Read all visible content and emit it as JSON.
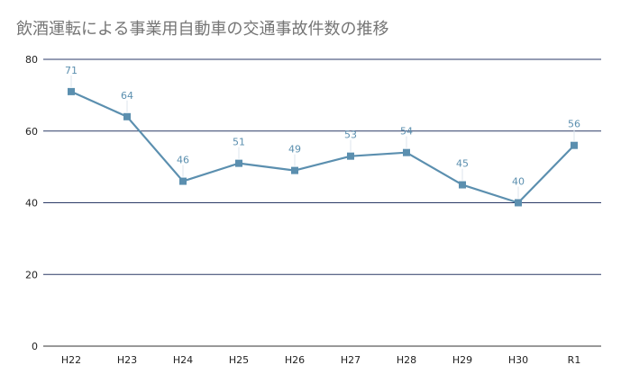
{
  "chart_data": {
    "type": "line",
    "title": "飲酒運転による事業用自動車の交通事故件数の推移",
    "categories": [
      "H22",
      "H23",
      "H24",
      "H25",
      "H26",
      "H27",
      "H28",
      "H29",
      "H30",
      "R1"
    ],
    "series": [
      {
        "values": [
          71,
          64,
          46,
          51,
          49,
          53,
          54,
          45,
          40,
          56
        ]
      }
    ],
    "ylim": [
      0,
      80
    ],
    "yticks": [
      0,
      20,
      40,
      60,
      80
    ],
    "grid": true,
    "data_labels": true,
    "colors": {
      "series": "#5b8faf",
      "gridline": "#2b3a67",
      "baseline": "#333333",
      "label": "#5b8faf",
      "title": "#757575"
    },
    "marker": "square"
  }
}
